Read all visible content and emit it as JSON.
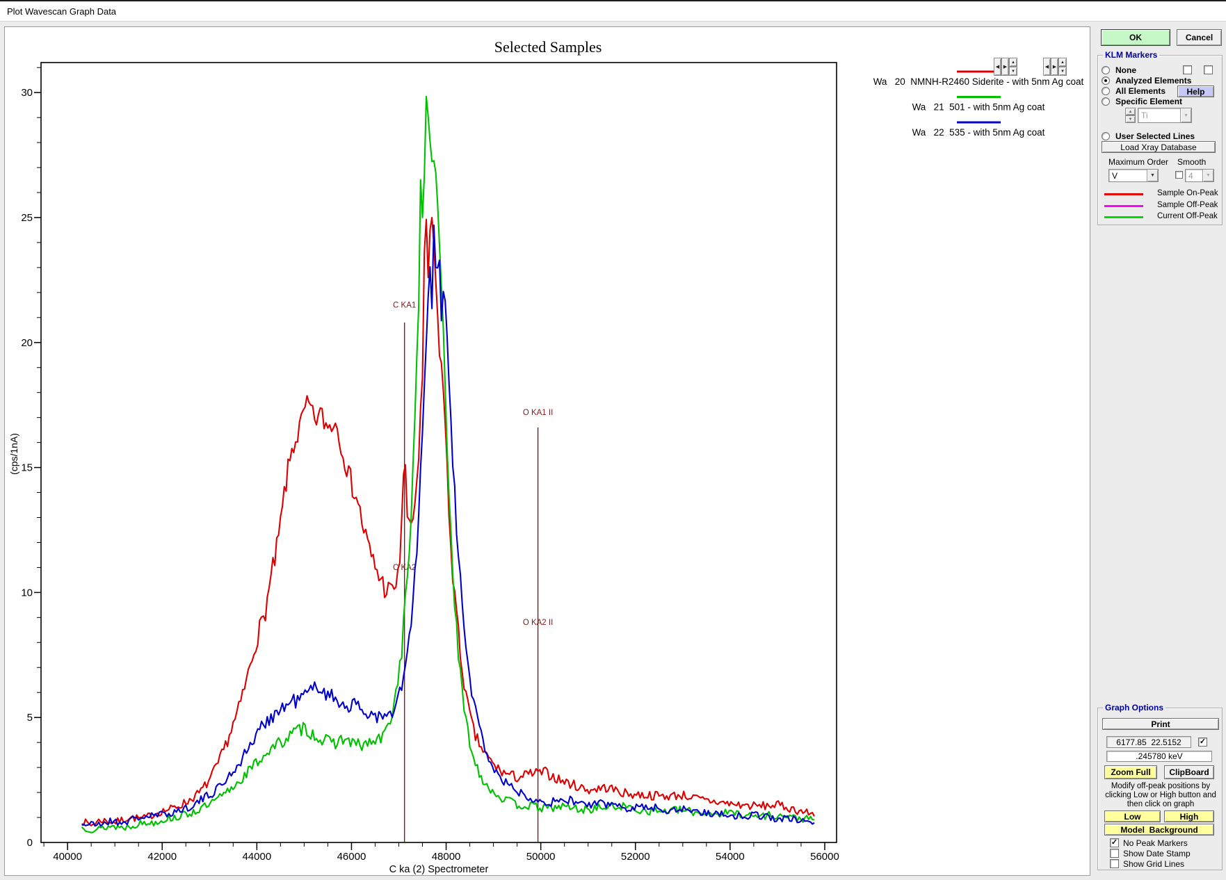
{
  "window": {
    "title": "Plot Wavescan Graph Data"
  },
  "actions": {
    "ok": "OK",
    "cancel": "Cancel"
  },
  "klm": {
    "title": "KLM Markers",
    "none": "None",
    "analyzed": "Analyzed Elements",
    "all": "All Elements",
    "help": "Help",
    "specific": "Specific Element",
    "element_value": "Ti",
    "user_selected": "User Selected Lines",
    "load_xray": "Load Xray Database",
    "max_order_label": "Maximum Order",
    "max_order_value": "V",
    "smooth_label": "Smooth",
    "smooth_value": "4",
    "legend": [
      {
        "label": "Sample On-Peak",
        "color": "#e00000"
      },
      {
        "label": "Sample Off-Peak",
        "color": "#ff00ff"
      },
      {
        "label": "Current Off-Peak",
        "color": "#00dd00"
      }
    ]
  },
  "graph_options": {
    "title": "Graph Options",
    "print": "Print",
    "cursor_readout": "6177.85  22.5152",
    "kev_readout": ".245780 keV",
    "zoom_full": "Zoom Full",
    "clipboard": "ClipBoard",
    "hint_lines": [
      "Modify off-peak positions by",
      "clicking Low or High button and",
      "then click on graph"
    ],
    "low": "Low",
    "high": "High",
    "model_background": "Model  Background",
    "checkboxes": [
      {
        "label": "No Peak Markers",
        "checked": true
      },
      {
        "label": "Show Date Stamp",
        "checked": false
      },
      {
        "label": "Show Grid Lines",
        "checked": false
      }
    ]
  },
  "chart_data": {
    "type": "line",
    "title": "Selected Samples",
    "xlabel": "C  ka (2) Spectrometer",
    "ylabel": "(cps/1nA)",
    "xlim": [
      39440,
      56250
    ],
    "ylim": [
      0,
      31.2
    ],
    "x_ticks": [
      40000,
      42000,
      44000,
      46000,
      48000,
      50000,
      52000,
      54000,
      56000
    ],
    "x_minor_step": 500,
    "y_ticks": [
      0,
      5,
      10,
      15,
      20,
      25,
      30
    ],
    "y_minor_step": 1,
    "grid": false,
    "legend_position": "top-right-outside",
    "markers": [
      {
        "label": "C KA1",
        "x": 47120,
        "line_top": 20.8,
        "label_y": 21.4,
        "has_line": true
      },
      {
        "label": "C KA2",
        "x": 47120,
        "line_top": 0,
        "label_y": 10.9,
        "has_line": false
      },
      {
        "label": "O KA1 II",
        "x": 49940,
        "line_top": 16.6,
        "label_y": 17.1,
        "has_line": true
      },
      {
        "label": "O KA2 II",
        "x": 49940,
        "line_top": 0,
        "label_y": 8.7,
        "has_line": false
      }
    ],
    "series": [
      {
        "name": "Wa   20  NMNH-R2460 Siderite - with 5nm Ag coat",
        "color": "#dd0000",
        "points": [
          [
            40300,
            0.85
          ],
          [
            40500,
            0.7
          ],
          [
            40700,
            0.9
          ],
          [
            41000,
            0.8
          ],
          [
            41300,
            1.0
          ],
          [
            41600,
            0.95
          ],
          [
            41900,
            1.2
          ],
          [
            42200,
            1.35
          ],
          [
            42500,
            1.6
          ],
          [
            42800,
            2.0
          ],
          [
            43000,
            2.5
          ],
          [
            43200,
            3.2
          ],
          [
            43400,
            4.2
          ],
          [
            43600,
            5.2
          ],
          [
            43800,
            6.6
          ],
          [
            44000,
            8.2
          ],
          [
            44150,
            9.0
          ],
          [
            44300,
            10.5
          ],
          [
            44450,
            12.0
          ],
          [
            44600,
            14.2
          ],
          [
            44750,
            15.8
          ],
          [
            44900,
            16.5
          ],
          [
            45000,
            17.2
          ],
          [
            45100,
            17.5
          ],
          [
            45200,
            16.9
          ],
          [
            45350,
            17.1
          ],
          [
            45500,
            16.6
          ],
          [
            45650,
            16.9
          ],
          [
            45800,
            15.9
          ],
          [
            45950,
            14.6
          ],
          [
            46100,
            13.9
          ],
          [
            46250,
            12.6
          ],
          [
            46400,
            11.5
          ],
          [
            46550,
            10.8
          ],
          [
            46700,
            10.2
          ],
          [
            46850,
            10.0
          ],
          [
            47000,
            10.6
          ],
          [
            47120,
            15.6
          ],
          [
            47200,
            12.3
          ],
          [
            47300,
            13.0
          ],
          [
            47400,
            14.8
          ],
          [
            47500,
            18.5
          ],
          [
            47560,
            25.9
          ],
          [
            47620,
            22.6
          ],
          [
            47680,
            25.5
          ],
          [
            47750,
            23.5
          ],
          [
            47850,
            20.0
          ],
          [
            47950,
            18.0
          ],
          [
            48050,
            13.5
          ],
          [
            48150,
            10.5
          ],
          [
            48300,
            7.5
          ],
          [
            48450,
            5.5
          ],
          [
            48600,
            4.3
          ],
          [
            48800,
            3.6
          ],
          [
            49000,
            3.1
          ],
          [
            49200,
            2.8
          ],
          [
            49500,
            2.6
          ],
          [
            49800,
            2.75
          ],
          [
            50100,
            2.8
          ],
          [
            50400,
            2.5
          ],
          [
            50700,
            2.3
          ],
          [
            51000,
            2.1
          ],
          [
            51400,
            2.2
          ],
          [
            51800,
            1.95
          ],
          [
            52200,
            1.9
          ],
          [
            52600,
            1.85
          ],
          [
            53000,
            1.9
          ],
          [
            53400,
            1.7
          ],
          [
            53800,
            1.6
          ],
          [
            54200,
            1.5
          ],
          [
            54600,
            1.45
          ],
          [
            55000,
            1.5
          ],
          [
            55400,
            1.3
          ],
          [
            55800,
            1.1
          ]
        ]
      },
      {
        "name": "Wa   21  501 - with 5nm Ag coat",
        "color": "#00c000",
        "points": [
          [
            40300,
            0.6
          ],
          [
            40600,
            0.5
          ],
          [
            40900,
            0.65
          ],
          [
            41200,
            0.6
          ],
          [
            41500,
            0.75
          ],
          [
            41800,
            0.8
          ],
          [
            42100,
            0.95
          ],
          [
            42400,
            1.05
          ],
          [
            42700,
            1.25
          ],
          [
            43000,
            1.5
          ],
          [
            43300,
            1.9
          ],
          [
            43600,
            2.4
          ],
          [
            43900,
            3.0
          ],
          [
            44200,
            3.6
          ],
          [
            44500,
            4.0
          ],
          [
            44800,
            4.4
          ],
          [
            45000,
            4.6
          ],
          [
            45200,
            4.3
          ],
          [
            45400,
            4.1
          ],
          [
            45600,
            3.95
          ],
          [
            45800,
            4.15
          ],
          [
            46000,
            4.0
          ],
          [
            46200,
            3.85
          ],
          [
            46400,
            4.0
          ],
          [
            46600,
            4.1
          ],
          [
            46750,
            4.5
          ],
          [
            46900,
            5.5
          ],
          [
            47050,
            7.5
          ],
          [
            47200,
            11.0
          ],
          [
            47330,
            16.0
          ],
          [
            47430,
            22.0
          ],
          [
            47460,
            26.6
          ],
          [
            47500,
            25.0
          ],
          [
            47540,
            26.8
          ],
          [
            47580,
            29.8
          ],
          [
            47640,
            28.6
          ],
          [
            47700,
            27.4
          ],
          [
            47780,
            26.8
          ],
          [
            47860,
            24.0
          ],
          [
            47940,
            20.5
          ],
          [
            48020,
            16.0
          ],
          [
            48120,
            11.5
          ],
          [
            48250,
            7.5
          ],
          [
            48400,
            5.0
          ],
          [
            48570,
            3.4
          ],
          [
            48750,
            2.6
          ],
          [
            48950,
            2.1
          ],
          [
            49200,
            1.75
          ],
          [
            49500,
            1.5
          ],
          [
            49800,
            1.45
          ],
          [
            50100,
            1.35
          ],
          [
            50500,
            1.45
          ],
          [
            50900,
            1.3
          ],
          [
            51300,
            1.4
          ],
          [
            51700,
            1.45
          ],
          [
            52100,
            1.3
          ],
          [
            52500,
            1.25
          ],
          [
            52900,
            1.3
          ],
          [
            53300,
            1.2
          ],
          [
            53700,
            1.15
          ],
          [
            54100,
            1.2
          ],
          [
            54500,
            1.05
          ],
          [
            54900,
            1.1
          ],
          [
            55300,
            1.0
          ],
          [
            55800,
            0.9
          ]
        ]
      },
      {
        "name": "Wa   22  535 - with 5nm Ag coat",
        "color": "#0000cc",
        "points": [
          [
            40300,
            0.75
          ],
          [
            40600,
            0.7
          ],
          [
            40900,
            0.85
          ],
          [
            41200,
            0.8
          ],
          [
            41500,
            1.0
          ],
          [
            41800,
            1.05
          ],
          [
            42100,
            1.15
          ],
          [
            42400,
            1.3
          ],
          [
            42700,
            1.55
          ],
          [
            43000,
            1.9
          ],
          [
            43300,
            2.4
          ],
          [
            43600,
            3.1
          ],
          [
            43900,
            4.0
          ],
          [
            44200,
            4.9
          ],
          [
            44500,
            5.3
          ],
          [
            44700,
            5.6
          ],
          [
            44900,
            5.75
          ],
          [
            45100,
            6.0
          ],
          [
            45300,
            6.3
          ],
          [
            45500,
            5.9
          ],
          [
            45700,
            5.7
          ],
          [
            45900,
            5.5
          ],
          [
            46100,
            5.45
          ],
          [
            46300,
            5.2
          ],
          [
            46500,
            5.1
          ],
          [
            46700,
            4.95
          ],
          [
            46850,
            5.1
          ],
          [
            47000,
            5.8
          ],
          [
            47150,
            7.0
          ],
          [
            47300,
            9.5
          ],
          [
            47420,
            13.0
          ],
          [
            47520,
            17.0
          ],
          [
            47600,
            21.0
          ],
          [
            47660,
            23.0
          ],
          [
            47700,
            21.5
          ],
          [
            47740,
            24.6
          ],
          [
            47800,
            22.0
          ],
          [
            47840,
            24.2
          ],
          [
            47900,
            21.0
          ],
          [
            47960,
            22.5
          ],
          [
            48030,
            19.5
          ],
          [
            48110,
            16.5
          ],
          [
            48220,
            12.5
          ],
          [
            48350,
            9.0
          ],
          [
            48500,
            6.5
          ],
          [
            48670,
            4.8
          ],
          [
            48850,
            3.6
          ],
          [
            49050,
            2.8
          ],
          [
            49300,
            2.3
          ],
          [
            49600,
            1.95
          ],
          [
            49900,
            1.75
          ],
          [
            50200,
            1.6
          ],
          [
            50600,
            1.7
          ],
          [
            51000,
            1.5
          ],
          [
            51400,
            1.55
          ],
          [
            51800,
            1.4
          ],
          [
            52200,
            1.45
          ],
          [
            52600,
            1.3
          ],
          [
            53000,
            1.35
          ],
          [
            53400,
            1.2
          ],
          [
            53800,
            1.15
          ],
          [
            54200,
            1.05
          ],
          [
            54600,
            1.1
          ],
          [
            55000,
            0.95
          ],
          [
            55400,
            0.9
          ],
          [
            55800,
            0.8
          ]
        ]
      }
    ],
    "marker_color": "#7b1b1b"
  }
}
